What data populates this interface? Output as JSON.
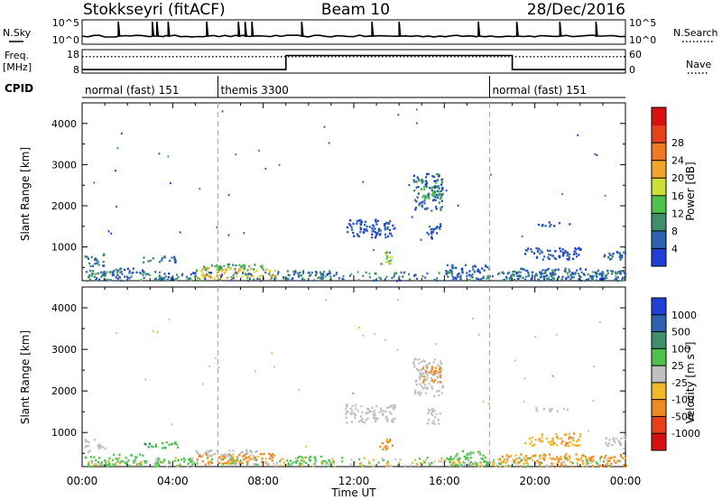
{
  "header": {
    "station": "Stokkseyri (fitACF)",
    "beam": "Beam 10",
    "date": "28/Dec/2016"
  },
  "summary_panels": {
    "nsky_label": "N.Sky",
    "nsky_ticks": [
      "10^5",
      "10^0"
    ],
    "nsearch_label": "N.Search",
    "nsearch_ticks": [
      "10^5",
      "10^0"
    ],
    "freq_label_line1": "Freq.",
    "freq_label_line2": "[MHz]",
    "freq_ticks": [
      "18",
      "8"
    ],
    "nave_label": "Nave",
    "nave_ticks": [
      "60",
      "0"
    ],
    "cpid_label": "CPID",
    "cpid_segments": [
      {
        "label": "normal (fast) 151",
        "start_hour": 0,
        "end_hour": 6
      },
      {
        "label": "themis 3300",
        "start_hour": 6,
        "end_hour": 18
      },
      {
        "label": "normal (fast) 151",
        "start_hour": 18,
        "end_hour": 24
      }
    ],
    "freq_steps": [
      {
        "hour": 0,
        "level": 0.15
      },
      {
        "hour": 9,
        "level": 0.15
      },
      {
        "hour": 9,
        "level": 0.75
      },
      {
        "hour": 19,
        "level": 0.75
      },
      {
        "hour": 19,
        "level": 0.15
      },
      {
        "hour": 24,
        "level": 0.15
      }
    ],
    "nave_steps": [
      {
        "hour": 0,
        "level": 0.7
      },
      {
        "hour": 24,
        "level": 0.7
      }
    ],
    "nsky_spikes_hours": [
      1.6,
      3.1,
      3.3,
      3.8,
      5.5,
      6.9,
      7.2,
      7.5,
      9.7,
      12.8,
      14.0,
      17.5,
      19.2,
      21.1,
      22.7
    ]
  },
  "axes": {
    "x_ticks": [
      "00:00",
      "04:00",
      "08:00",
      "12:00",
      "16:00",
      "20:00",
      "00:00"
    ],
    "x_label": "Time UT",
    "y_label": "Slant Range [km]",
    "y_ticks": [
      "1000",
      "2000",
      "3000",
      "4000"
    ]
  },
  "colorbars": {
    "power": {
      "label": "Power [dB]",
      "ticks": [
        "4",
        "8",
        "12",
        "16",
        "20",
        "24",
        "28"
      ],
      "colors": [
        "#1f3fd6",
        "#2d62b0",
        "#3f8f6a",
        "#4ec24a",
        "#cde038",
        "#f1a52a",
        "#f07a22",
        "#e8401a",
        "#d91010"
      ]
    },
    "velocity": {
      "label": "Velocity [m s^-1]",
      "ticks": [
        "1000",
        "500",
        "100",
        "25",
        "-25",
        "-100",
        "-500",
        "-1000"
      ],
      "colors": [
        "#1f3fd6",
        "#2d62b0",
        "#3f8f6a",
        "#4ec24a",
        "#c0c0c0",
        "#f1b82a",
        "#f08a22",
        "#e8401a",
        "#d91010"
      ]
    }
  },
  "chart_data": [
    {
      "type": "heatmap",
      "title": "Power",
      "xlabel": "Time UT",
      "ylabel": "Slant Range [km]",
      "xlim": [
        0,
        24
      ],
      "ylim": [
        180,
        4500
      ],
      "colorbar": "Power [dB]",
      "clim": [
        0,
        32
      ],
      "cpid_boundaries_hours": [
        6,
        18
      ],
      "clusters": [
        {
          "t0": 0.1,
          "t1": 1.0,
          "r0": 550,
          "r1": 850,
          "value": 8
        },
        {
          "t0": 0.1,
          "t1": 1.2,
          "r0": 200,
          "r1": 450,
          "value": 10
        },
        {
          "t0": 1.3,
          "t1": 2.8,
          "r0": 250,
          "r1": 500,
          "value": 6
        },
        {
          "t0": 2.6,
          "t1": 4.2,
          "r0": 650,
          "r1": 800,
          "value": 7
        },
        {
          "t0": 3.2,
          "t1": 5.0,
          "r0": 220,
          "r1": 400,
          "value": 6
        },
        {
          "t0": 5.0,
          "t1": 8.5,
          "r0": 250,
          "r1": 520,
          "value": 20
        },
        {
          "t0": 5.0,
          "t1": 8.0,
          "r0": 450,
          "r1": 600,
          "value": 12
        },
        {
          "t0": 9.0,
          "t1": 11.0,
          "r0": 250,
          "r1": 450,
          "value": 8
        },
        {
          "t0": 11.6,
          "t1": 13.8,
          "r0": 1250,
          "r1": 1700,
          "value": 4
        },
        {
          "t0": 13.1,
          "t1": 13.7,
          "r0": 600,
          "r1": 900,
          "value": 14
        },
        {
          "t0": 14.6,
          "t1": 15.9,
          "r0": 1900,
          "r1": 2800,
          "value": 6
        },
        {
          "t0": 15.0,
          "t1": 15.8,
          "r0": 2200,
          "r1": 2600,
          "value": 12
        },
        {
          "t0": 15.2,
          "t1": 15.8,
          "r0": 1200,
          "r1": 1600,
          "value": 5
        },
        {
          "t0": 16.0,
          "t1": 18.0,
          "r0": 220,
          "r1": 600,
          "value": 5
        },
        {
          "t0": 20.0,
          "t1": 21.5,
          "r0": 1520,
          "r1": 1620,
          "value": 5
        },
        {
          "t0": 19.5,
          "t1": 22.0,
          "r0": 700,
          "r1": 1000,
          "value": 5
        },
        {
          "t0": 18.5,
          "t1": 24.0,
          "r0": 200,
          "r1": 500,
          "value": 7
        },
        {
          "t0": 23.0,
          "t1": 24.0,
          "r0": 700,
          "r1": 950,
          "value": 6
        }
      ]
    },
    {
      "type": "heatmap",
      "title": "Velocity",
      "xlabel": "Time UT",
      "ylabel": "Slant Range [km]",
      "xlim": [
        0,
        24
      ],
      "ylim": [
        180,
        4500
      ],
      "colorbar": "Velocity [m s^-1]",
      "cpid_boundaries_hours": [
        6,
        18
      ],
      "clusters": [
        {
          "t0": 0.1,
          "t1": 1.0,
          "r0": 550,
          "r1": 850,
          "value": 0
        },
        {
          "t0": 0.1,
          "t1": 1.2,
          "r0": 200,
          "r1": 450,
          "value": 60
        },
        {
          "t0": 1.3,
          "t1": 2.8,
          "r0": 250,
          "r1": 500,
          "value": 60
        },
        {
          "t0": 2.6,
          "t1": 4.2,
          "r0": 650,
          "r1": 800,
          "value": 80
        },
        {
          "t0": 3.2,
          "t1": 5.0,
          "r0": 220,
          "r1": 400,
          "value": 40
        },
        {
          "t0": 5.0,
          "t1": 8.5,
          "r0": 250,
          "r1": 520,
          "value": -150
        },
        {
          "t0": 5.0,
          "t1": 8.0,
          "r0": 450,
          "r1": 600,
          "value": 0
        },
        {
          "t0": 9.0,
          "t1": 11.0,
          "r0": 250,
          "r1": 450,
          "value": 50
        },
        {
          "t0": 11.6,
          "t1": 13.8,
          "r0": 1250,
          "r1": 1700,
          "value": 0
        },
        {
          "t0": 13.1,
          "t1": 13.7,
          "r0": 600,
          "r1": 900,
          "value": -150
        },
        {
          "t0": 14.6,
          "t1": 15.9,
          "r0": 1900,
          "r1": 2800,
          "value": 0
        },
        {
          "t0": 15.0,
          "t1": 15.8,
          "r0": 2200,
          "r1": 2600,
          "value": -200
        },
        {
          "t0": 15.2,
          "t1": 15.8,
          "r0": 1200,
          "r1": 1600,
          "value": 0
        },
        {
          "t0": 16.0,
          "t1": 18.0,
          "r0": 220,
          "r1": 600,
          "value": 40
        },
        {
          "t0": 20.0,
          "t1": 21.5,
          "r0": 1520,
          "r1": 1620,
          "value": 0
        },
        {
          "t0": 19.5,
          "t1": 22.0,
          "r0": 700,
          "r1": 1000,
          "value": -80
        },
        {
          "t0": 18.5,
          "t1": 24.0,
          "r0": 200,
          "r1": 500,
          "value": -120
        },
        {
          "t0": 23.0,
          "t1": 24.0,
          "r0": 700,
          "r1": 950,
          "value": 0
        }
      ]
    }
  ]
}
